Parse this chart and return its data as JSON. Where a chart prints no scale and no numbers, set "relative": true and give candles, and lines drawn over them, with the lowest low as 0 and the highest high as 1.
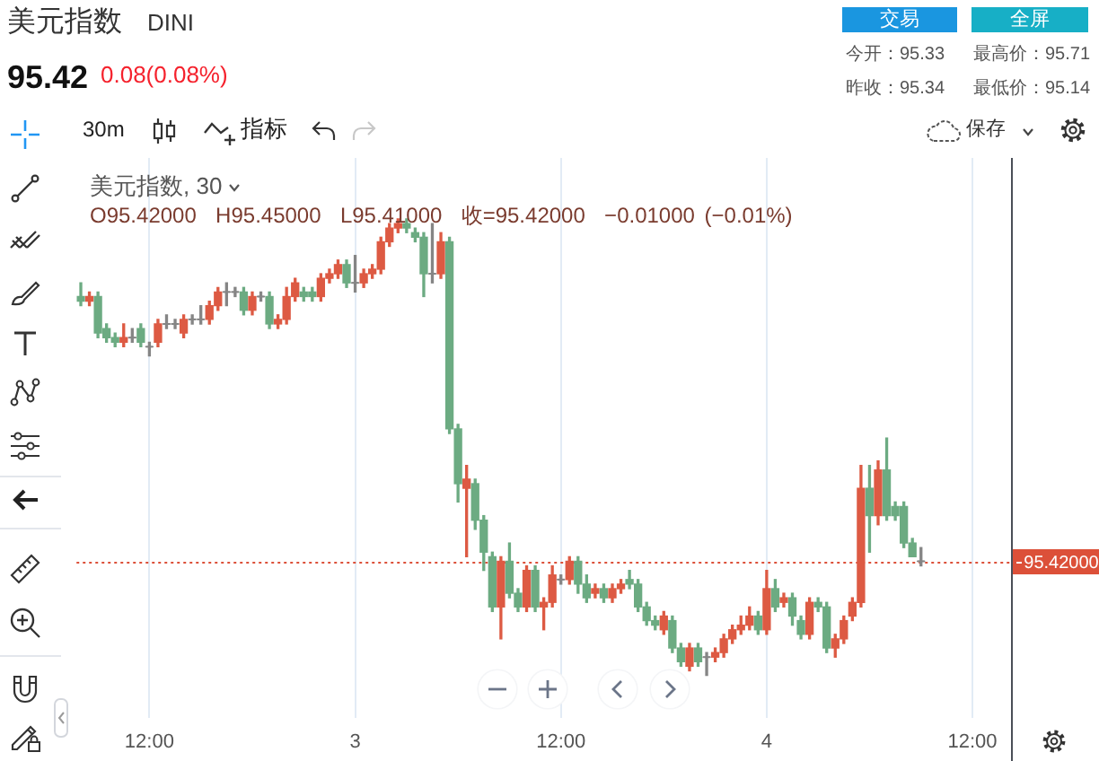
{
  "chart_data": {
    "type": "candlestick",
    "title": "美元指数",
    "annotations": [
      "DINI",
      "95.42",
      "0.08(0.08%)",
      "交易",
      "全屏",
      "今开：95.33",
      "最高价：95.71",
      "昨收：95.34",
      "最低价：95.14",
      "30m",
      "指标",
      "保存",
      "美元指数, 30",
      "O95.42000  H95.45000  L95.41000  收=95.42000  −0.01000 (−0.01%)",
      "95.42000"
    ],
    "categories": [
      null,
      null,
      null,
      null,
      null,
      null,
      null,
      null,
      "12:00",
      null,
      null,
      null,
      null,
      null,
      null,
      null,
      null,
      null,
      null,
      null,
      null,
      null,
      null,
      null,
      null,
      null,
      null,
      null,
      null,
      null,
      null,
      null,
      "3",
      null,
      null,
      null,
      null,
      null,
      null,
      null,
      null,
      null,
      null,
      null,
      null,
      null,
      null,
      null,
      null,
      null,
      null,
      null,
      null,
      null,
      null,
      null,
      "12:00",
      null,
      null,
      null,
      null,
      null,
      null,
      null,
      null,
      null,
      null,
      null,
      null,
      null,
      null,
      null,
      null,
      null,
      null,
      null,
      null,
      null,
      null,
      null,
      "4",
      null,
      null,
      null,
      null,
      null,
      null,
      null,
      null,
      null,
      null,
      null,
      null,
      null,
      null,
      null,
      null,
      null,
      null,
      null,
      null,
      null,
      null,
      null,
      "12:00",
      null,
      null,
      null,
      null
    ],
    "ohlc": [
      [
        0.83,
        0.86,
        0.81,
        0.82
      ],
      [
        0.82,
        0.84,
        0.81,
        0.83
      ],
      [
        0.83,
        0.84,
        0.74,
        0.75
      ],
      [
        0.76,
        0.77,
        0.73,
        0.74
      ],
      [
        0.74,
        0.75,
        0.72,
        0.73
      ],
      [
        0.73,
        0.77,
        0.72,
        0.74
      ],
      [
        0.74,
        0.76,
        0.73,
        0.74
      ],
      [
        0.76,
        0.77,
        0.72,
        0.73
      ],
      [
        0.72,
        0.73,
        0.7,
        0.72
      ],
      [
        0.73,
        0.78,
        0.72,
        0.77
      ],
      [
        0.77,
        0.79,
        0.76,
        0.77
      ],
      [
        0.77,
        0.78,
        0.76,
        0.77
      ],
      [
        0.75,
        0.79,
        0.74,
        0.78
      ],
      [
        0.78,
        0.79,
        0.77,
        0.78
      ],
      [
        0.78,
        0.81,
        0.77,
        0.78
      ],
      [
        0.78,
        0.82,
        0.77,
        0.81
      ],
      [
        0.81,
        0.85,
        0.8,
        0.84
      ],
      [
        0.84,
        0.86,
        0.81,
        0.84
      ],
      [
        0.84,
        0.85,
        0.83,
        0.84
      ],
      [
        0.84,
        0.85,
        0.79,
        0.8
      ],
      [
        0.8,
        0.84,
        0.79,
        0.83
      ],
      [
        0.83,
        0.84,
        0.82,
        0.83
      ],
      [
        0.83,
        0.84,
        0.76,
        0.77
      ],
      [
        0.77,
        0.79,
        0.76,
        0.78
      ],
      [
        0.78,
        0.85,
        0.77,
        0.83
      ],
      [
        0.83,
        0.87,
        0.82,
        0.86
      ],
      [
        0.84,
        0.85,
        0.82,
        0.83
      ],
      [
        0.84,
        0.85,
        0.82,
        0.83
      ],
      [
        0.83,
        0.88,
        0.82,
        0.87
      ],
      [
        0.87,
        0.89,
        0.86,
        0.88
      ],
      [
        0.88,
        0.91,
        0.87,
        0.9
      ],
      [
        0.9,
        0.91,
        0.85,
        0.86
      ],
      [
        0.86,
        0.92,
        0.84,
        0.86
      ],
      [
        0.86,
        0.89,
        0.85,
        0.88
      ],
      [
        0.88,
        0.9,
        0.87,
        0.89
      ],
      [
        0.89,
        0.96,
        0.88,
        0.95
      ],
      [
        0.95,
        0.99,
        0.94,
        0.98
      ],
      [
        0.98,
        1,
        0.97,
        0.99
      ],
      [
        0.99,
        1,
        0.97,
        0.98
      ],
      [
        0.97,
        0.98,
        0.95,
        0.96
      ],
      [
        0.96,
        0.97,
        0.83,
        0.88
      ],
      [
        0.88,
        0.99,
        0.86,
        0.88
      ],
      [
        0.88,
        0.97,
        0.87,
        0.95
      ],
      [
        0.95,
        0.96,
        0.53,
        0.54
      ],
      [
        0.54,
        0.55,
        0.38,
        0.42
      ],
      [
        0.41,
        0.46,
        0.26,
        0.43
      ],
      [
        0.42,
        0.43,
        0.32,
        0.34
      ],
      [
        0.34,
        0.35,
        0.23,
        0.27
      ],
      [
        0.26,
        0.27,
        0.14,
        0.15
      ],
      [
        0.15,
        0.26,
        0.08,
        0.25
      ],
      [
        0.25,
        0.29,
        0.17,
        0.18
      ],
      [
        0.18,
        0.19,
        0.14,
        0.15
      ],
      [
        0.15,
        0.24,
        0.14,
        0.23
      ],
      [
        0.23,
        0.24,
        0.14,
        0.15
      ],
      [
        0.15,
        0.17,
        0.1,
        0.16
      ],
      [
        0.16,
        0.24,
        0.15,
        0.22
      ],
      [
        0.21,
        0.22,
        0.2,
        0.21
      ],
      [
        0.21,
        0.26,
        0.2,
        0.25
      ],
      [
        0.25,
        0.26,
        0.18,
        0.2
      ],
      [
        0.2,
        0.22,
        0.16,
        0.17
      ],
      [
        0.18,
        0.2,
        0.17,
        0.19
      ],
      [
        0.19,
        0.2,
        0.16,
        0.17
      ],
      [
        0.17,
        0.2,
        0.16,
        0.19
      ],
      [
        0.19,
        0.21,
        0.18,
        0.2
      ],
      [
        0.21,
        0.23,
        0.19,
        0.2
      ],
      [
        0.2,
        0.21,
        0.14,
        0.15
      ],
      [
        0.15,
        0.16,
        0.11,
        0.12
      ],
      [
        0.12,
        0.13,
        0.1,
        0.11
      ],
      [
        0.1,
        0.14,
        0.09,
        0.13
      ],
      [
        0.12,
        0.13,
        0.05,
        0.06
      ],
      [
        0.06,
        0.07,
        0.02,
        0.03
      ],
      [
        0.02,
        0.07,
        0.01,
        0.06
      ],
      [
        0.06,
        0.07,
        0.02,
        0.03
      ],
      [
        0.04,
        0.05,
        0,
        0.04
      ],
      [
        0.04,
        0.06,
        0.03,
        0.05
      ],
      [
        0.05,
        0.09,
        0.04,
        0.08
      ],
      [
        0.08,
        0.11,
        0.07,
        0.1
      ],
      [
        0.1,
        0.13,
        0.09,
        0.11
      ],
      [
        0.11,
        0.15,
        0.1,
        0.13
      ],
      [
        0.13,
        0.14,
        0.09,
        0.1
      ],
      [
        0.1,
        0.23,
        0.09,
        0.19
      ],
      [
        0.19,
        0.21,
        0.14,
        0.15
      ],
      [
        0.16,
        0.18,
        0.15,
        0.17
      ],
      [
        0.17,
        0.18,
        0.11,
        0.13
      ],
      [
        0.12,
        0.13,
        0.08,
        0.09
      ],
      [
        0.09,
        0.17,
        0.08,
        0.16
      ],
      [
        0.16,
        0.17,
        0.14,
        0.15
      ],
      [
        0.15,
        0.16,
        0.05,
        0.06
      ],
      [
        0.06,
        0.09,
        0.04,
        0.08
      ],
      [
        0.08,
        0.13,
        0.07,
        0.12
      ],
      [
        0.13,
        0.17,
        0.12,
        0.16
      ],
      [
        0.16,
        0.46,
        0.15,
        0.41
      ],
      [
        0.41,
        0.46,
        0.27,
        0.35
      ],
      [
        0.35,
        0.47,
        0.33,
        0.45
      ],
      [
        0.45,
        0.52,
        0.34,
        0.35
      ],
      [
        0.37,
        0.38,
        0.34,
        0.35
      ],
      [
        0.37,
        0.38,
        0.28,
        0.29
      ],
      [
        0.29,
        0.3,
        0.26,
        0.26
      ],
      [
        0.25,
        0.28,
        0.24,
        0.25
      ],
      null,
      null,
      null,
      null,
      null,
      null,
      null,
      null,
      null,
      null
    ],
    "colors": [
      "#6cab82",
      "#dd5a43",
      "#6cab82",
      "#6cab82",
      "#6cab82",
      "#dd5a43",
      "#858585",
      "#6cab82",
      "#858585",
      "#dd5a43",
      "#858585",
      "#858585",
      "#dd5a43",
      "#858585",
      "#858585",
      "#dd5a43",
      "#dd5a43",
      "#858585",
      "#858585",
      "#6cab82",
      "#dd5a43",
      "#858585",
      "#6cab82",
      "#dd5a43",
      "#dd5a43",
      "#dd5a43",
      "#6cab82",
      "#6cab82",
      "#dd5a43",
      "#dd5a43",
      "#dd5a43",
      "#6cab82",
      "#858585",
      "#dd5a43",
      "#dd5a43",
      "#dd5a43",
      "#dd5a43",
      "#dd5a43",
      "#6cab82",
      "#6cab82",
      "#6cab82",
      "#858585",
      "#dd5a43",
      "#6cab82",
      "#6cab82",
      "#dd5a43",
      "#6cab82",
      "#6cab82",
      "#6cab82",
      "#dd5a43",
      "#6cab82",
      "#6cab82",
      "#dd5a43",
      "#6cab82",
      "#dd5a43",
      "#dd5a43",
      "#858585",
      "#dd5a43",
      "#6cab82",
      "#6cab82",
      "#dd5a43",
      "#6cab82",
      "#dd5a43",
      "#dd5a43",
      "#6cab82",
      "#6cab82",
      "#6cab82",
      "#6cab82",
      "#dd5a43",
      "#6cab82",
      "#6cab82",
      "#dd5a43",
      "#6cab82",
      "#858585",
      "#dd5a43",
      "#dd5a43",
      "#dd5a43",
      "#dd5a43",
      "#dd5a43",
      "#6cab82",
      "#dd5a43",
      "#6cab82",
      "#dd5a43",
      "#6cab82",
      "#6cab82",
      "#dd5a43",
      "#6cab82",
      "#6cab82",
      "#dd5a43",
      "#dd5a43",
      "#dd5a43",
      "#dd5a43",
      "#6cab82",
      "#dd5a43",
      "#6cab82",
      "#6cab82",
      "#6cab82",
      "#6cab82",
      "#858585",
      null,
      null,
      null,
      null,
      null,
      null,
      null,
      null,
      null,
      null
    ],
    "ref_lines": [
      {
        "axis": "y",
        "value": 0.25,
        "color": "#dc5039",
        "line_style": "dotted"
      }
    ],
    "relative": true,
    "grid": "x"
  }
}
